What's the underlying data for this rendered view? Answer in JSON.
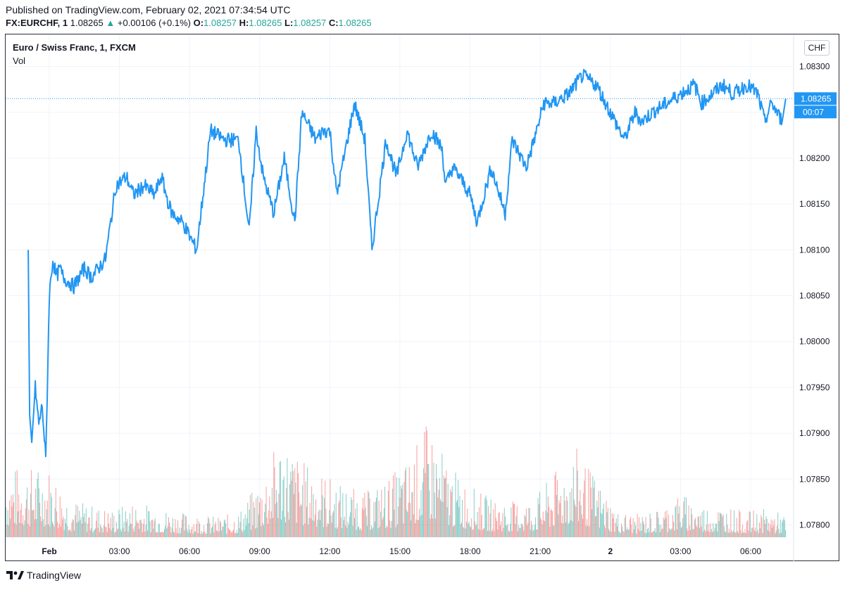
{
  "header": {
    "published": "Published on TradingView.com, February 02, 2021 07:34:54 UTC",
    "symbol": "FX:EURCHF, 1",
    "last": "1.08265",
    "change_arrow": "▲",
    "change": "+0.00106 (+0.1%)",
    "o_label": "O:",
    "o_value": "1.08257",
    "h_label": "H:",
    "h_value": "1.08265",
    "l_label": "L:",
    "l_value": "1.08257",
    "c_label": "C:",
    "c_value": "1.08265"
  },
  "legend": {
    "title": "Euro / Swiss Franc, 1, FXCM",
    "volume": "Vol"
  },
  "currency_badge": "CHF",
  "footer": {
    "brand": "TradingView",
    "logo_icon": "tradingview-logo-icon"
  },
  "colors": {
    "line": "#2196f3",
    "vol_up": "#26a69a",
    "vol_down": "#ef5350",
    "grid": "#f0f3fa",
    "axis_text": "#131722"
  },
  "chart_data": {
    "type": "line",
    "title": "Euro / Swiss Franc, 1, FXCM",
    "xlabel": "",
    "ylabel": "",
    "ylim": [
      1.07785,
      1.08335
    ],
    "xlim": [
      0,
      10.5
    ],
    "x_tick_labels": [
      "Feb",
      "03:00",
      "06:00",
      "09:00",
      "12:00",
      "15:00",
      "18:00",
      "21:00",
      "2",
      "03:00",
      "06:00"
    ],
    "y_tick_labels": [
      "1.08300",
      "1.08250",
      "1.08200",
      "1.08150",
      "1.08100",
      "1.08050",
      "1.08000",
      "1.07950",
      "1.07900",
      "1.07850",
      "1.07800"
    ],
    "y_ticks": [
      1.083,
      1.0825,
      1.082,
      1.0815,
      1.081,
      1.0805,
      1.08,
      1.0795,
      1.079,
      1.0785,
      1.078
    ],
    "grid": true,
    "last_price_label": "1.08265",
    "last_price": 1.08265,
    "countdown_label": "00:07",
    "series": [
      {
        "name": "EURCHF close",
        "x": [
          -0.3,
          -0.28,
          -0.25,
          -0.2,
          -0.15,
          -0.1,
          -0.05,
          0.0,
          0.05,
          0.1,
          0.15,
          0.2,
          0.35,
          0.5,
          0.6,
          0.8,
          0.95,
          1.1,
          1.2,
          1.35,
          1.5,
          1.6,
          1.7,
          1.75,
          1.9,
          2.1,
          2.3,
          2.5,
          2.7,
          2.85,
          2.95,
          3.05,
          3.2,
          3.35,
          3.5,
          3.6,
          3.8,
          3.9,
          4.0,
          4.1,
          4.35,
          4.5,
          4.6,
          4.8,
          4.95,
          5.1,
          5.25,
          5.35,
          5.45,
          5.6,
          5.65,
          5.75,
          5.85,
          6.0,
          6.1,
          6.3,
          6.5,
          6.6,
          6.8,
          6.95,
          7.05,
          7.2,
          7.4,
          7.6,
          7.8,
          8.0,
          8.2,
          8.35,
          8.45,
          8.6,
          8.8,
          9.0,
          9.2,
          9.3,
          9.45,
          9.6,
          9.75,
          9.95,
          10.1,
          10.2,
          10.3,
          10.45,
          10.5
        ],
        "values": [
          1.081,
          1.0792,
          1.0789,
          1.0795,
          1.0791,
          1.0793,
          1.0787,
          1.0805,
          1.0809,
          1.0807,
          1.0808,
          1.0807,
          1.0806,
          1.0808,
          1.0807,
          1.0809,
          1.0817,
          1.0818,
          1.0816,
          1.0817,
          1.0816,
          1.0818,
          1.0815,
          1.0814,
          1.0813,
          1.081,
          1.0823,
          1.0822,
          1.0822,
          1.0812,
          1.0823,
          1.0818,
          1.0814,
          1.082,
          1.0813,
          1.0825,
          1.0822,
          1.0823,
          1.0823,
          1.0816,
          1.0826,
          1.0822,
          1.081,
          1.0822,
          1.0818,
          1.0823,
          1.0819,
          1.0821,
          1.0823,
          1.0821,
          1.0817,
          1.0819,
          1.0818,
          1.0816,
          1.0813,
          1.0819,
          1.0814,
          1.0822,
          1.0819,
          1.0823,
          1.0826,
          1.0826,
          1.0827,
          1.0829,
          1.0828,
          1.0825,
          1.0822,
          1.0825,
          1.0824,
          1.0825,
          1.0826,
          1.0827,
          1.0828,
          1.0826,
          1.0827,
          1.0828,
          1.0827,
          1.0828,
          1.0827,
          1.0824,
          1.0826,
          1.0824,
          1.08265
        ]
      }
    ],
    "volume": {
      "name": "Vol",
      "note": "volume bars, relative scale 0-1 of max, alternating up/down colors",
      "x": [
        0.0,
        0.3,
        0.6,
        0.9,
        1.2,
        1.5,
        1.8,
        2.1,
        2.4,
        2.7,
        3.0,
        3.3,
        3.6,
        3.9,
        4.2,
        4.5,
        4.8,
        5.1,
        5.4,
        5.7,
        6.0,
        6.3,
        6.6,
        6.9,
        7.2,
        7.5,
        7.8,
        8.1,
        8.4,
        8.7,
        9.0,
        9.3,
        9.6,
        9.9,
        10.2,
        10.5
      ],
      "values": [
        0.55,
        0.3,
        0.25,
        0.22,
        0.28,
        0.24,
        0.2,
        0.18,
        0.16,
        0.2,
        0.45,
        0.8,
        0.6,
        0.5,
        0.4,
        0.35,
        0.45,
        0.6,
        0.9,
        0.55,
        0.4,
        0.3,
        0.28,
        0.3,
        0.5,
        0.7,
        0.45,
        0.2,
        0.18,
        0.22,
        0.35,
        0.25,
        0.25,
        0.2,
        0.22,
        0.18
      ]
    }
  }
}
